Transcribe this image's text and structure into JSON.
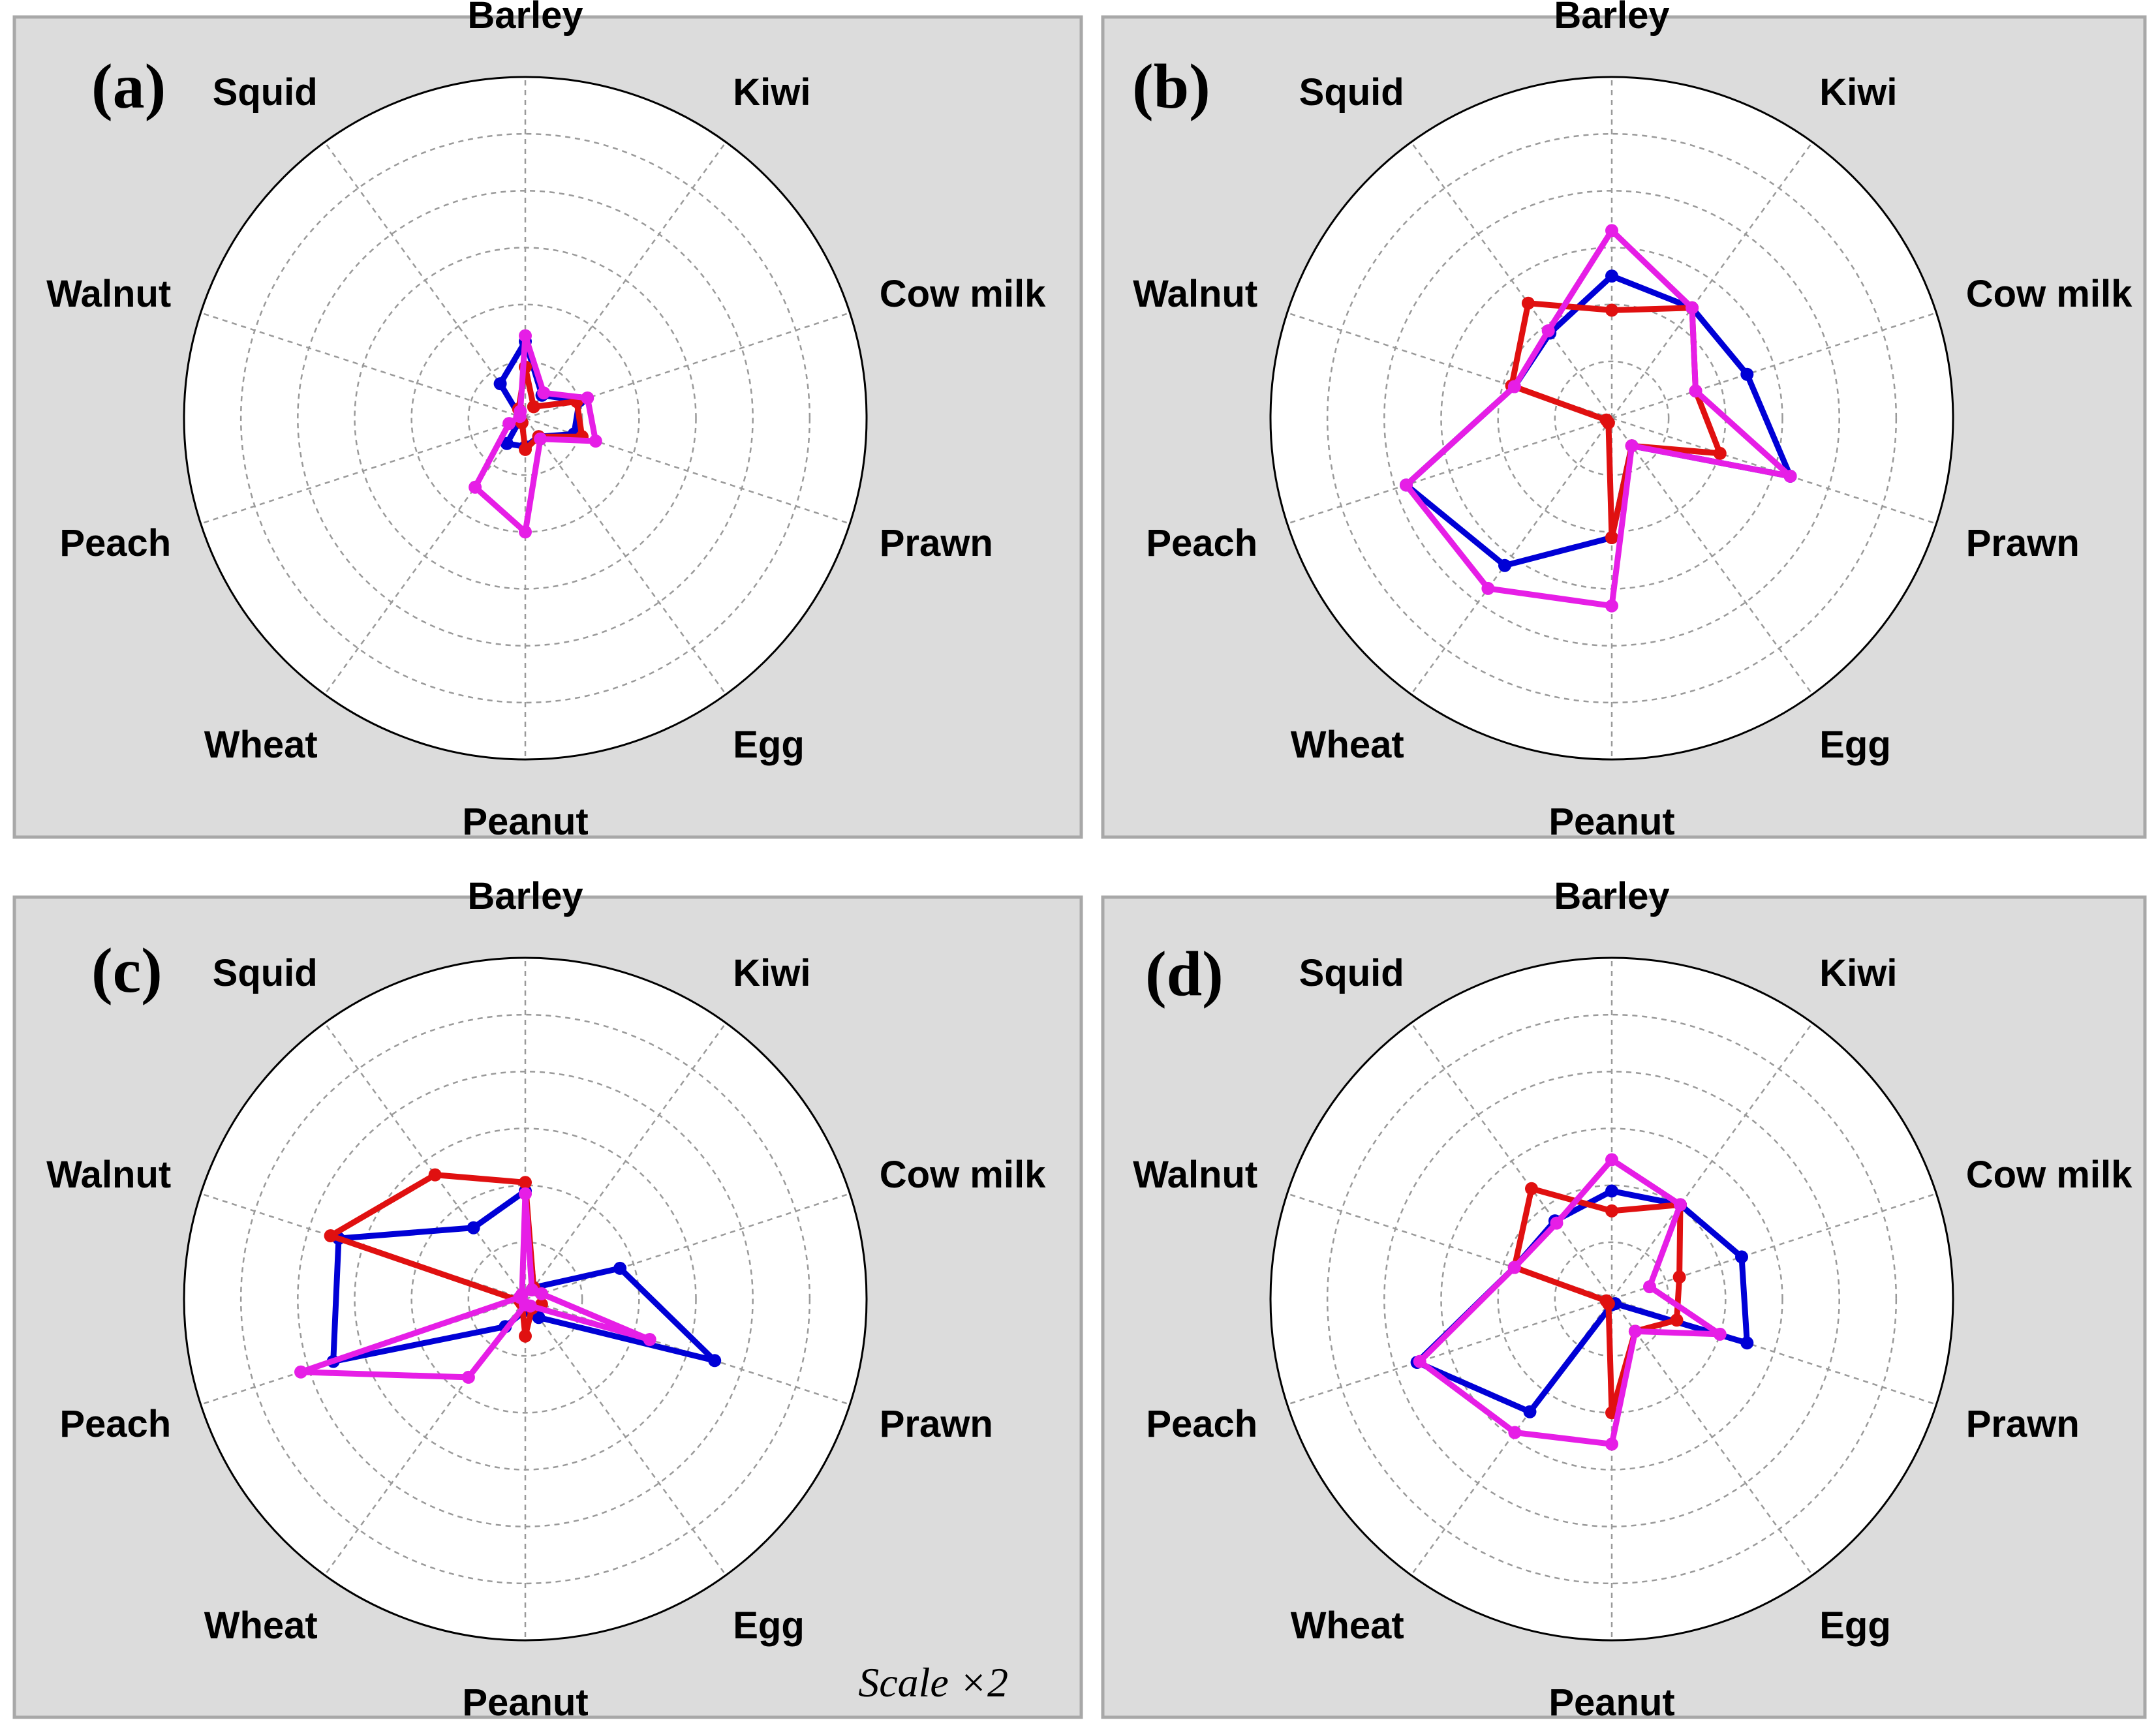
{
  "chart_data": [
    {
      "type": "radar",
      "panel_label": "(a)",
      "categories": [
        "Barley",
        "Kiwi",
        "Cow milk",
        "Prawn",
        "Egg",
        "Peanut",
        "Wheat",
        "Peach",
        "Walnut",
        "Squid"
      ],
      "rmax": 6,
      "grid_rings": 6,
      "note": "",
      "series": [
        {
          "name": "blue",
          "color": "#0000d6",
          "values": [
            1.35,
            0.5,
            1.0,
            0.9,
            0.4,
            0.5,
            0.55,
            0.1,
            0.1,
            0.75
          ]
        },
        {
          "name": "red",
          "color": "#e01010",
          "values": [
            0.9,
            0.25,
            0.95,
            1.05,
            0.4,
            0.55,
            0.1,
            0.1,
            0.1,
            0.2
          ]
        },
        {
          "name": "magenta",
          "color": "#e61ee6",
          "values": [
            1.45,
            0.55,
            1.15,
            1.3,
            0.45,
            2.0,
            1.5,
            0.3,
            0.1,
            0.15
          ]
        }
      ]
    },
    {
      "type": "radar",
      "panel_label": "(b)",
      "categories": [
        "Barley",
        "Kiwi",
        "Cow milk",
        "Prawn",
        "Egg",
        "Peanut",
        "Wheat",
        "Peach",
        "Walnut",
        "Squid"
      ],
      "rmax": 6,
      "grid_rings": 6,
      "note": "",
      "series": [
        {
          "name": "blue",
          "color": "#0000d6",
          "values": [
            2.5,
            2.4,
            2.5,
            3.3,
            0.6,
            2.1,
            3.2,
            3.8,
            1.8,
            1.85
          ]
        },
        {
          "name": "red",
          "color": "#e01010",
          "values": [
            1.9,
            2.4,
            1.55,
            2.0,
            0.6,
            2.1,
            0.1,
            0.1,
            1.85,
            2.5
          ]
        },
        {
          "name": "magenta",
          "color": "#e61ee6",
          "values": [
            3.3,
            2.4,
            1.55,
            3.3,
            0.6,
            3.3,
            3.7,
            3.8,
            1.8,
            1.9
          ]
        }
      ]
    },
    {
      "type": "radar",
      "panel_label": "(c)",
      "categories": [
        "Barley",
        "Kiwi",
        "Cow milk",
        "Prawn",
        "Egg",
        "Peanut",
        "Wheat",
        "Peach",
        "Walnut",
        "Squid"
      ],
      "rmax": 6,
      "grid_rings": 6,
      "note": "Scale ×2",
      "series": [
        {
          "name": "blue",
          "color": "#0000d6",
          "values": [
            1.9,
            0.25,
            1.75,
            3.5,
            0.4,
            0.2,
            0.6,
            3.55,
            3.45,
            1.55
          ]
        },
        {
          "name": "red",
          "color": "#e01010",
          "values": [
            2.05,
            0.25,
            0.3,
            0.3,
            0.2,
            0.65,
            0.1,
            0.1,
            3.6,
            2.7
          ]
        },
        {
          "name": "magenta",
          "color": "#e61ee6",
          "values": [
            1.85,
            0.2,
            0.3,
            2.3,
            0.15,
            0.1,
            1.7,
            4.15,
            0.1,
            0.1
          ]
        }
      ]
    },
    {
      "type": "radar",
      "panel_label": "(d)",
      "categories": [
        "Barley",
        "Kiwi",
        "Cow milk",
        "Prawn",
        "Egg",
        "Peanut",
        "Wheat",
        "Peach",
        "Walnut",
        "Squid"
      ],
      "rmax": 6,
      "grid_rings": 6,
      "note": "",
      "series": [
        {
          "name": "blue",
          "color": "#0000d6",
          "values": [
            1.9,
            2.05,
            2.4,
            2.5,
            0.1,
            0.1,
            2.45,
            3.6,
            1.8,
            1.7
          ]
        },
        {
          "name": "red",
          "color": "#e01010",
          "values": [
            1.55,
            2.05,
            1.25,
            1.2,
            0.7,
            2.0,
            0.1,
            0.1,
            1.8,
            2.4
          ]
        },
        {
          "name": "magenta",
          "color": "#e61ee6",
          "values": [
            2.45,
            2.05,
            0.7,
            2.0,
            0.7,
            2.55,
            2.9,
            3.55,
            1.8,
            1.65
          ]
        }
      ]
    }
  ]
}
